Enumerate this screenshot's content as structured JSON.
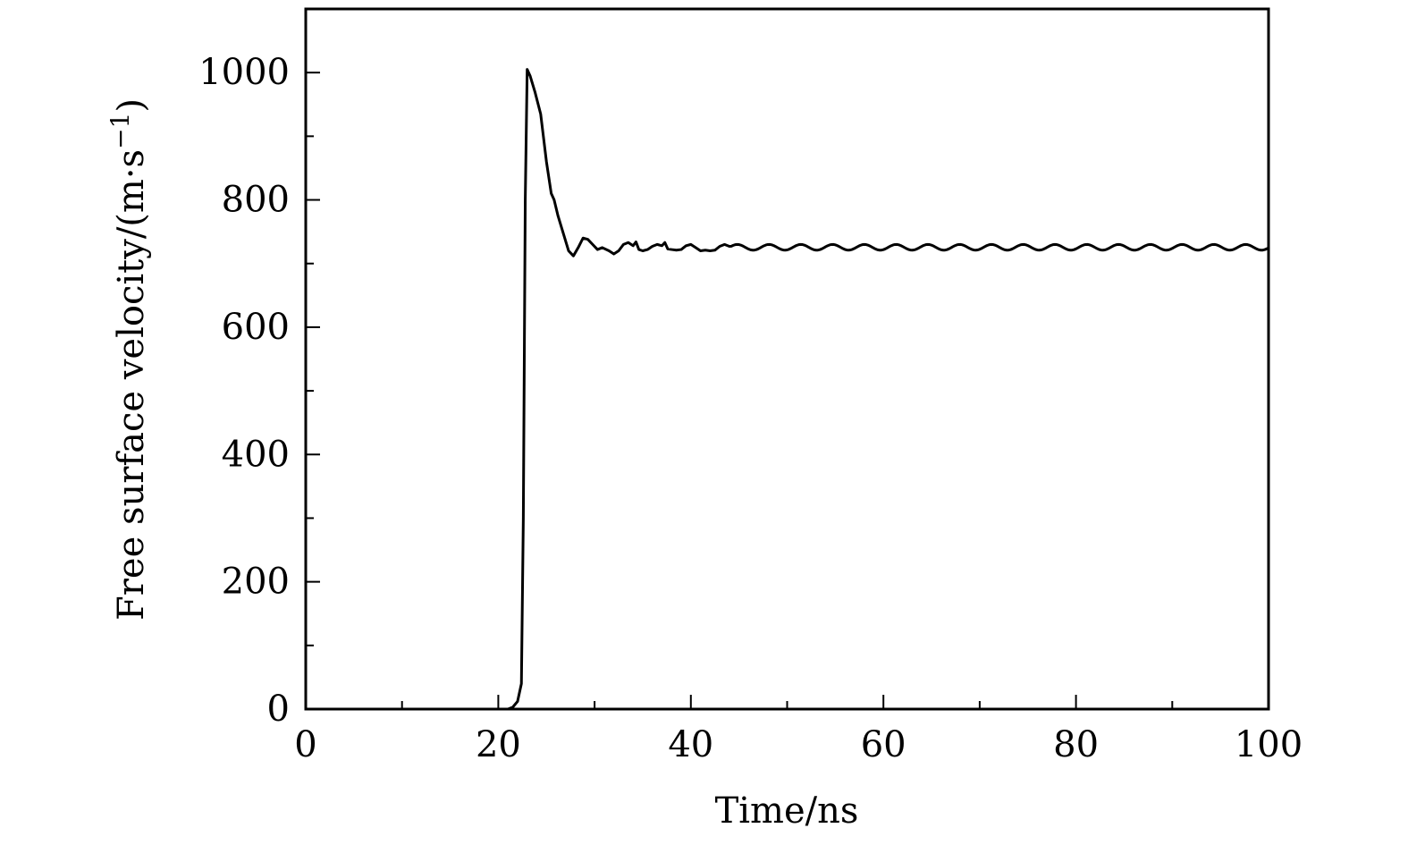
{
  "chart_data": {
    "type": "line",
    "title": "",
    "xlabel": "Time/ns",
    "ylabel": "Free surface velocity/(m·s",
    "ylabel_superscript": "−1",
    "ylabel_suffix": ")",
    "xlim": [
      0,
      100
    ],
    "ylim": [
      0,
      1100
    ],
    "xticks": [
      0,
      20,
      40,
      60,
      80,
      100
    ],
    "yticks": [
      0,
      200,
      400,
      600,
      800,
      1000
    ],
    "x_minor_step": 10,
    "y_minor_step": 100,
    "grid": false,
    "legend": "none",
    "line_color": "#000000",
    "series": [
      {
        "x": [
          0,
          21.0,
          21.5,
          22.0,
          22.4,
          22.6,
          22.8,
          23.0,
          23.3,
          23.8,
          24.4,
          25.0,
          25.5,
          25.8,
          26.2,
          26.8,
          27.3,
          27.8,
          28.3,
          28.8,
          29.3,
          29.8,
          30.3,
          30.8,
          31.5,
          32.0,
          32.5,
          33.0,
          33.5,
          34.0,
          34.3,
          34.6,
          35.0,
          35.5,
          36.0,
          36.5,
          37.0,
          37.3,
          37.6,
          38.0,
          38.5,
          39.0,
          39.5,
          40.0,
          40.5,
          41.0,
          41.5,
          42.0,
          42.5,
          43.0,
          43.5,
          44.0
        ],
        "y": [
          0,
          0,
          3,
          12,
          40,
          300,
          800,
          1005,
          995,
          970,
          935,
          860,
          810,
          800,
          775,
          745,
          720,
          712,
          725,
          740,
          738,
          730,
          722,
          725,
          720,
          715,
          720,
          730,
          733,
          728,
          734,
          722,
          720,
          722,
          727,
          730,
          728,
          733,
          723,
          722,
          721,
          722,
          728,
          730,
          725,
          720,
          721,
          720,
          721,
          727,
          730,
          727
        ]
      }
    ],
    "oscillation": {
      "start": 44.0,
      "end": 100,
      "mean": 725.5,
      "amplitude": 4.5,
      "period": 3.3
    }
  }
}
